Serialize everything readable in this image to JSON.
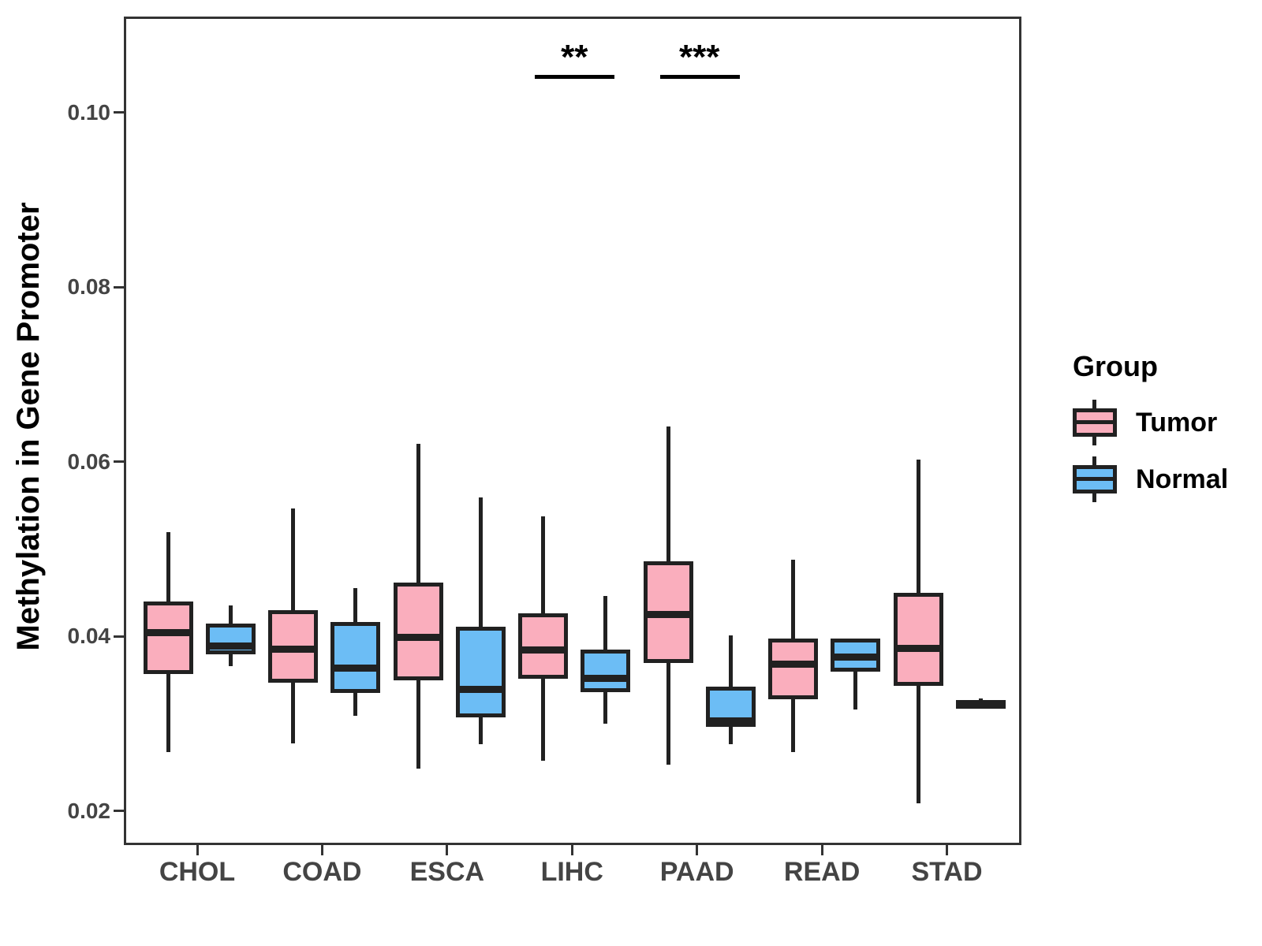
{
  "figure": {
    "y_axis_title": "Methylation in Gene Promoter"
  },
  "legend": {
    "title": "Group",
    "items": [
      {
        "label": "Tumor",
        "color": "#FAAEBD"
      },
      {
        "label": "Normal",
        "color": "#6CBDF5"
      }
    ]
  },
  "chart_data": {
    "type": "boxplot",
    "title": "",
    "xlabel": "",
    "ylabel": "Methylation in Gene Promoter",
    "categories": [
      "CHOL",
      "COAD",
      "ESCA",
      "LIHC",
      "PAAD",
      "READ",
      "STAD"
    ],
    "ylim": [
      0.0161,
      0.111
    ],
    "yticks": [
      0.02,
      0.04,
      0.06,
      0.08,
      0.1
    ],
    "ytick_labels": [
      "0.02",
      "0.04",
      "0.06",
      "0.08",
      "0.10"
    ],
    "grid": false,
    "legend_position": "right",
    "series": [
      {
        "name": "Tumor",
        "color": "#FAAEBD",
        "boxes": [
          {
            "category": "CHOL",
            "whislo": 0.027,
            "q1": 0.036,
            "med": 0.0407,
            "q3": 0.0443,
            "whishi": 0.0522
          },
          {
            "category": "COAD",
            "whislo": 0.028,
            "q1": 0.035,
            "med": 0.0388,
            "q3": 0.0433,
            "whishi": 0.0549
          },
          {
            "category": "ESCA",
            "whislo": 0.0251,
            "q1": 0.0352,
            "med": 0.0402,
            "q3": 0.0464,
            "whishi": 0.0623
          },
          {
            "category": "LIHC",
            "whislo": 0.026,
            "q1": 0.0354,
            "med": 0.0387,
            "q3": 0.0429,
            "whishi": 0.054
          },
          {
            "category": "PAAD",
            "whislo": 0.0256,
            "q1": 0.0372,
            "med": 0.0428,
            "q3": 0.0489,
            "whishi": 0.0643
          },
          {
            "category": "READ",
            "whislo": 0.027,
            "q1": 0.0331,
            "med": 0.0371,
            "q3": 0.04,
            "whishi": 0.0491
          },
          {
            "category": "STAD",
            "whislo": 0.0212,
            "q1": 0.0346,
            "med": 0.0389,
            "q3": 0.0453,
            "whishi": 0.0605
          }
        ]
      },
      {
        "name": "Normal",
        "color": "#6CBDF5",
        "boxes": [
          {
            "category": "CHOL",
            "whislo": 0.0369,
            "q1": 0.0382,
            "med": 0.0392,
            "q3": 0.0417,
            "whishi": 0.0438
          },
          {
            "category": "COAD",
            "whislo": 0.0312,
            "q1": 0.0338,
            "med": 0.0366,
            "q3": 0.0419,
            "whishi": 0.0458
          },
          {
            "category": "ESCA",
            "whislo": 0.0279,
            "q1": 0.031,
            "med": 0.0342,
            "q3": 0.0414,
            "whishi": 0.0562
          },
          {
            "category": "LIHC",
            "whislo": 0.0303,
            "q1": 0.0339,
            "med": 0.0355,
            "q3": 0.0388,
            "whishi": 0.0449
          },
          {
            "category": "PAAD",
            "whislo": 0.0279,
            "q1": 0.0299,
            "med": 0.0306,
            "q3": 0.0345,
            "whishi": 0.0404
          },
          {
            "category": "READ",
            "whislo": 0.0319,
            "q1": 0.0362,
            "med": 0.0379,
            "q3": 0.04,
            "whishi": 0.04
          },
          {
            "category": "STAD",
            "whislo": 0.032,
            "q1": 0.0323,
            "med": 0.0326,
            "q3": 0.0329,
            "whishi": 0.0332
          }
        ]
      }
    ],
    "annotations": [
      {
        "category": "LIHC",
        "label": "**",
        "bar_y": 0.1046
      },
      {
        "category": "PAAD",
        "label": "***",
        "bar_y": 0.1046
      }
    ],
    "style": {
      "box_line_color": "#212121",
      "axis_text_color": "#444444",
      "axis_line_color": "#333333"
    }
  }
}
